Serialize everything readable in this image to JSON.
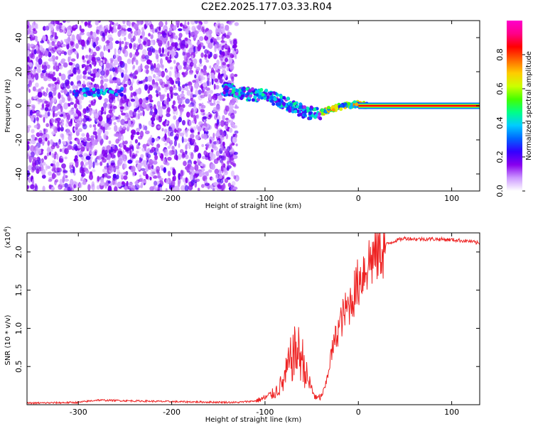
{
  "title": "C2E2.2025.177.03.33.R04",
  "chart_data": [
    {
      "type": "heatmap",
      "xlabel": "Height of straight line (km)",
      "ylabel": "Frequency (Hz)",
      "xlim": [
        -355,
        130
      ],
      "ylim": [
        -50,
        50
      ],
      "xticks": [
        -300,
        -200,
        -100,
        0,
        100
      ],
      "yticks": [
        -40,
        -20,
        0,
        20,
        40
      ],
      "colorbar": {
        "label": "Normalized spectral amplitude",
        "range": [
          0,
          1
        ],
        "ticks": [
          0.0,
          0.2,
          0.4,
          0.6,
          0.8
        ],
        "colormap": [
          "#ffffff",
          "#cc99ff",
          "#8800ee",
          "#3300ff",
          "#0066ff",
          "#00ccff",
          "#00ff88",
          "#44ff00",
          "#ccff00",
          "#ffcc00",
          "#ff6600",
          "#ff0000",
          "#ff0088",
          "#ff00cc"
        ]
      },
      "features": {
        "noise_region_x": [
          -355,
          -130
        ],
        "band_near_x_minus_290": {
          "x": [
            -300,
            -260
          ],
          "freq": 8
        },
        "descending_track": [
          [
            -145,
            10
          ],
          [
            -120,
            7
          ],
          [
            -100,
            6
          ],
          [
            -80,
            2
          ],
          [
            -60,
            -3
          ],
          [
            -45,
            -5
          ],
          [
            -30,
            -2
          ],
          [
            -15,
            0
          ],
          [
            0,
            1
          ],
          [
            10,
            0
          ]
        ],
        "carrier_line": {
          "x": [
            0,
            130
          ],
          "freq": 0
        }
      }
    },
    {
      "type": "line",
      "xlabel": "Height of straight line (km)",
      "ylabel": "SNR (10 * v/v)",
      "yscale_label": "(x10",
      "yscale_exp": "4",
      "yscale_close": ")",
      "xlim": [
        -355,
        130
      ],
      "ylim": [
        0,
        22500
      ],
      "xticks": [
        -300,
        -200,
        -100,
        0,
        100
      ],
      "yticks": [
        0.5,
        1.0,
        1.5,
        2.0
      ],
      "ytick_labels": [
        "0.5",
        "1.0",
        "1.5",
        "2.0"
      ],
      "color": "#ee2222",
      "x": [
        -355,
        -300,
        -280,
        -200,
        -130,
        -110,
        -100,
        -90,
        -80,
        -75,
        -70,
        -65,
        -60,
        -55,
        -50,
        -45,
        -40,
        -35,
        -30,
        -25,
        -20,
        -15,
        -10,
        -5,
        0,
        5,
        10,
        20,
        30,
        40,
        50,
        60,
        80,
        100,
        120,
        130
      ],
      "y": [
        200,
        300,
        600,
        400,
        300,
        500,
        900,
        1500,
        3000,
        5000,
        6500,
        7000,
        6000,
        3500,
        2000,
        800,
        1000,
        2500,
        6000,
        8500,
        10500,
        12000,
        13000,
        14500,
        16000,
        17500,
        18500,
        20000,
        21000,
        21500,
        21800,
        21700,
        21700,
        21600,
        21400,
        21100
      ]
    }
  ]
}
